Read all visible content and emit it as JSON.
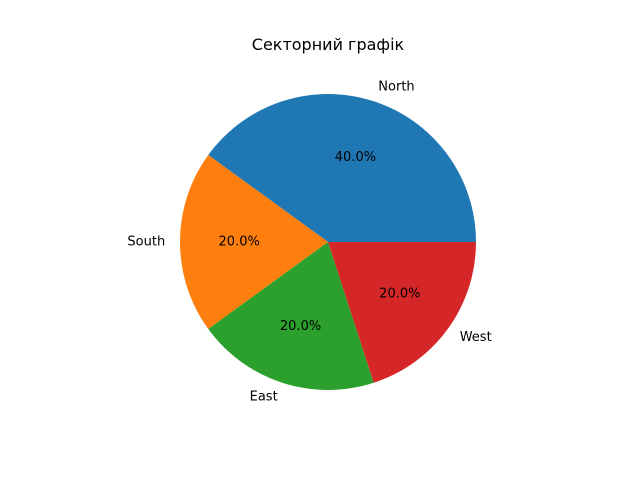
{
  "chart_data": {
    "type": "pie",
    "title": "Секторний графік",
    "categories": [
      "North",
      "South",
      "East",
      "West"
    ],
    "values": [
      40,
      20,
      20,
      20
    ],
    "percent_labels": [
      "40.0%",
      "20.0%",
      "20.0%",
      "20.0%"
    ],
    "colors": [
      "#1f77b4",
      "#ff7f0e",
      "#2ca02c",
      "#d62728"
    ],
    "start_angle_deg": 0,
    "direction": "counterclockwise"
  }
}
